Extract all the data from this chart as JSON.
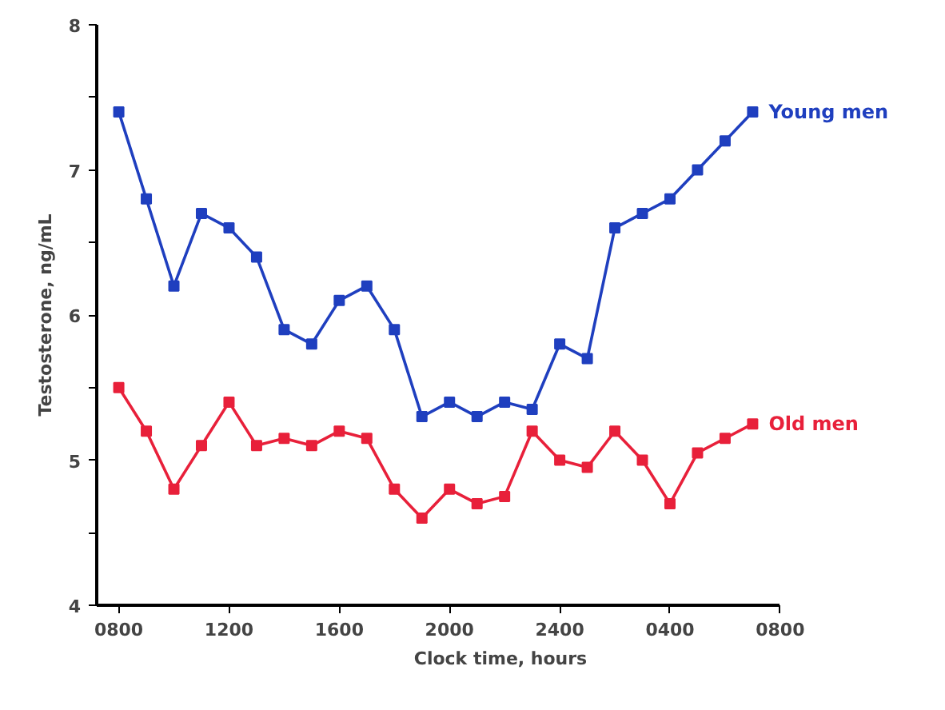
{
  "chart_data": {
    "type": "line",
    "xlabel": "Clock time, hours",
    "ylabel": "Testosterone, ng/mL",
    "categories": [
      "0800",
      null,
      null,
      null,
      "1200",
      null,
      null,
      null,
      "1600",
      null,
      null,
      null,
      "2000",
      null,
      null,
      null,
      "2400",
      null,
      null,
      null,
      "0400",
      null,
      null,
      null,
      "0800"
    ],
    "series": [
      {
        "name": "Young men",
        "color": "#1f3fbf",
        "values": [
          7.4,
          6.8,
          6.2,
          6.7,
          6.6,
          6.4,
          5.9,
          5.8,
          6.1,
          6.2,
          5.9,
          5.3,
          5.4,
          5.3,
          5.4,
          5.35,
          5.8,
          5.7,
          6.6,
          6.7,
          6.8,
          7.0,
          7.2,
          7.4,
          null
        ]
      },
      {
        "name": "Old men",
        "color": "#e8203a",
        "values": [
          5.5,
          5.2,
          4.8,
          5.1,
          5.4,
          5.1,
          5.15,
          5.1,
          5.2,
          5.15,
          4.8,
          4.6,
          4.8,
          4.7,
          4.75,
          5.2,
          5.0,
          4.95,
          5.2,
          5.0,
          4.7,
          5.05,
          5.15,
          5.25,
          null
        ]
      }
    ],
    "ylim": [
      4,
      8
    ],
    "yticks": [
      4,
      {
        "value": 4.5,
        "label": null
      },
      5,
      {
        "value": 5.5,
        "label": null
      },
      6,
      {
        "value": 6.5,
        "label": null
      },
      7,
      {
        "value": 7.5,
        "label": null
      },
      8
    ],
    "grid": false,
    "legend": false,
    "marker": "square",
    "line_style": "solid"
  }
}
